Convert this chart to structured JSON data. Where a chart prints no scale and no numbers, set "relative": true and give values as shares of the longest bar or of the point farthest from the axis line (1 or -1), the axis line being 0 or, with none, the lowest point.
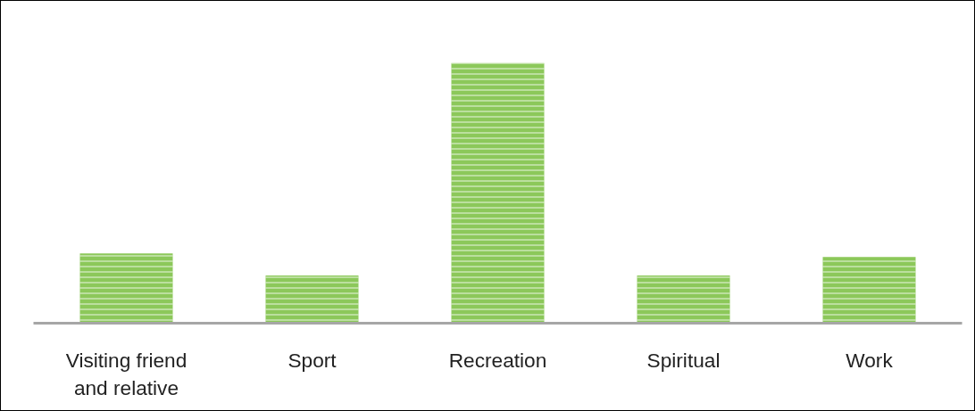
{
  "chart_data": {
    "type": "bar",
    "relative": true,
    "categories": [
      "Visiting friend\nand relative",
      "Sport",
      "Recreation",
      "Spiritual",
      "Work"
    ],
    "values": [
      0.268,
      0.183,
      1,
      0.183,
      0.254
    ],
    "color": "#8cc85a",
    "grid": false
  }
}
